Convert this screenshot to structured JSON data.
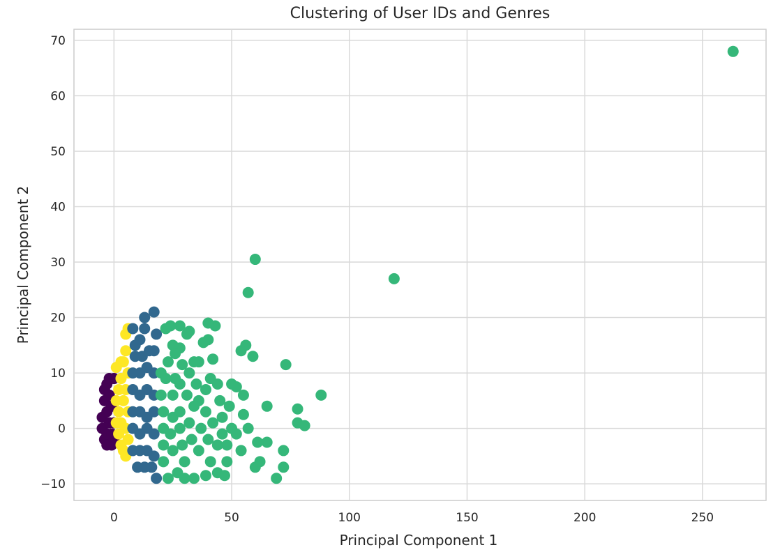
{
  "chart_data": {
    "type": "scatter",
    "title": "Clustering of User IDs and Genres",
    "xlabel": "Principal Component 1",
    "ylabel": "Principal Component 2",
    "xlim": [
      -17,
      277
    ],
    "ylim": [
      -13,
      72
    ],
    "xticks": [
      0,
      50,
      100,
      150,
      200,
      250
    ],
    "yticks": [
      -10,
      0,
      10,
      20,
      30,
      40,
      50,
      60,
      70
    ],
    "grid": true,
    "cluster_colors": [
      "#440154",
      "#31688e",
      "#35b779",
      "#fde725"
    ],
    "points": [
      {
        "x": -3,
        "y": 8,
        "c": 0
      },
      {
        "x": -4,
        "y": 5,
        "c": 0
      },
      {
        "x": -5,
        "y": 2,
        "c": 0
      },
      {
        "x": -5,
        "y": 0,
        "c": 0
      },
      {
        "x": -4,
        "y": -2,
        "c": 0
      },
      {
        "x": -3,
        "y": -3,
        "c": 0
      },
      {
        "x": -1,
        "y": -3,
        "c": 0
      },
      {
        "x": -2,
        "y": 6,
        "c": 0
      },
      {
        "x": -3,
        "y": 3,
        "c": 0
      },
      {
        "x": -2,
        "y": 1,
        "c": 0
      },
      {
        "x": -3,
        "y": -1,
        "c": 0
      },
      {
        "x": 0,
        "y": 9,
        "c": 0
      },
      {
        "x": -1,
        "y": 4,
        "c": 0
      },
      {
        "x": 0,
        "y": 1,
        "c": 0
      },
      {
        "x": -1,
        "y": -1,
        "c": 0
      },
      {
        "x": 0,
        "y": -2,
        "c": 0
      },
      {
        "x": -4,
        "y": 7,
        "c": 0
      },
      {
        "x": -2,
        "y": 9,
        "c": 0
      },
      {
        "x": 1,
        "y": 11,
        "c": 3
      },
      {
        "x": 3,
        "y": 12,
        "c": 3
      },
      {
        "x": 5,
        "y": 14,
        "c": 3
      },
      {
        "x": 5,
        "y": 17,
        "c": 3
      },
      {
        "x": 6,
        "y": 18,
        "c": 3
      },
      {
        "x": 3,
        "y": 9,
        "c": 3
      },
      {
        "x": 2,
        "y": 7,
        "c": 3
      },
      {
        "x": 4,
        "y": 5,
        "c": 3
      },
      {
        "x": 2,
        "y": 3,
        "c": 3
      },
      {
        "x": 3,
        "y": 1,
        "c": 3
      },
      {
        "x": 2,
        "y": -1,
        "c": 3
      },
      {
        "x": 3,
        "y": -3,
        "c": 3
      },
      {
        "x": 4,
        "y": -4,
        "c": 3
      },
      {
        "x": 5,
        "y": -5,
        "c": 3
      },
      {
        "x": 6,
        "y": 10,
        "c": 3
      },
      {
        "x": 5,
        "y": 7,
        "c": 3
      },
      {
        "x": 6,
        "y": 3,
        "c": 3
      },
      {
        "x": 5,
        "y": 0,
        "c": 3
      },
      {
        "x": 6,
        "y": -2,
        "c": 3
      },
      {
        "x": 4,
        "y": 12,
        "c": 3
      },
      {
        "x": 1,
        "y": 5,
        "c": 3
      },
      {
        "x": 1,
        "y": 1,
        "c": 3
      },
      {
        "x": 8,
        "y": 18,
        "c": 1
      },
      {
        "x": 11,
        "y": 16,
        "c": 1
      },
      {
        "x": 13,
        "y": 20,
        "c": 1
      },
      {
        "x": 13,
        "y": 18,
        "c": 1
      },
      {
        "x": 17,
        "y": 21,
        "c": 1
      },
      {
        "x": 18,
        "y": 17,
        "c": 1
      },
      {
        "x": 9,
        "y": 13,
        "c": 1
      },
      {
        "x": 12,
        "y": 13,
        "c": 1
      },
      {
        "x": 15,
        "y": 14,
        "c": 1
      },
      {
        "x": 17,
        "y": 14,
        "c": 1
      },
      {
        "x": 8,
        "y": 10,
        "c": 1
      },
      {
        "x": 11,
        "y": 10,
        "c": 1
      },
      {
        "x": 14,
        "y": 11,
        "c": 1
      },
      {
        "x": 17,
        "y": 10,
        "c": 1
      },
      {
        "x": 8,
        "y": 7,
        "c": 1
      },
      {
        "x": 11,
        "y": 6,
        "c": 1
      },
      {
        "x": 14,
        "y": 7,
        "c": 1
      },
      {
        "x": 17,
        "y": 6,
        "c": 1
      },
      {
        "x": 8,
        "y": 3,
        "c": 1
      },
      {
        "x": 11,
        "y": 3,
        "c": 1
      },
      {
        "x": 14,
        "y": 2,
        "c": 1
      },
      {
        "x": 17,
        "y": 3,
        "c": 1
      },
      {
        "x": 8,
        "y": 0,
        "c": 1
      },
      {
        "x": 11,
        "y": -1,
        "c": 1
      },
      {
        "x": 14,
        "y": 0,
        "c": 1
      },
      {
        "x": 17,
        "y": -1,
        "c": 1
      },
      {
        "x": 8,
        "y": -4,
        "c": 1
      },
      {
        "x": 11,
        "y": -4,
        "c": 1
      },
      {
        "x": 14,
        "y": -4,
        "c": 1
      },
      {
        "x": 17,
        "y": -5,
        "c": 1
      },
      {
        "x": 10,
        "y": -7,
        "c": 1
      },
      {
        "x": 13,
        "y": -7,
        "c": 1
      },
      {
        "x": 16,
        "y": -7,
        "c": 1
      },
      {
        "x": 18,
        "y": -9,
        "c": 1
      },
      {
        "x": 9,
        "y": 15,
        "c": 1
      },
      {
        "x": 263,
        "y": 68,
        "c": 2
      },
      {
        "x": 119,
        "y": 27,
        "c": 2
      },
      {
        "x": 60,
        "y": 30.5,
        "c": 2
      },
      {
        "x": 57,
        "y": 24.5,
        "c": 2
      },
      {
        "x": 88,
        "y": 6,
        "c": 2
      },
      {
        "x": 73,
        "y": 11.5,
        "c": 2
      },
      {
        "x": 78,
        "y": 3.5,
        "c": 2
      },
      {
        "x": 78,
        "y": 1,
        "c": 2
      },
      {
        "x": 81,
        "y": 0.5,
        "c": 2
      },
      {
        "x": 65,
        "y": 4,
        "c": 2
      },
      {
        "x": 72,
        "y": -4,
        "c": 2
      },
      {
        "x": 72,
        "y": -7,
        "c": 2
      },
      {
        "x": 69,
        "y": -9,
        "c": 2
      },
      {
        "x": 65,
        "y": -2.5,
        "c": 2
      },
      {
        "x": 62,
        "y": -6,
        "c": 2
      },
      {
        "x": 60,
        "y": -7,
        "c": 2
      },
      {
        "x": 61,
        "y": -2.5,
        "c": 2
      },
      {
        "x": 59,
        "y": 13,
        "c": 2
      },
      {
        "x": 56,
        "y": 15,
        "c": 2
      },
      {
        "x": 54,
        "y": 14,
        "c": 2
      },
      {
        "x": 55,
        "y": 6,
        "c": 2
      },
      {
        "x": 55,
        "y": 2.5,
        "c": 2
      },
      {
        "x": 57,
        "y": 0,
        "c": 2
      },
      {
        "x": 54,
        "y": -4,
        "c": 2
      },
      {
        "x": 52,
        "y": 7.5,
        "c": 2
      },
      {
        "x": 50,
        "y": 8,
        "c": 2
      },
      {
        "x": 48,
        "y": -6,
        "c": 2
      },
      {
        "x": 47,
        "y": -8.5,
        "c": 2
      },
      {
        "x": 46,
        "y": 2,
        "c": 2
      },
      {
        "x": 45,
        "y": 5,
        "c": 2
      },
      {
        "x": 44,
        "y": 8,
        "c": 2
      },
      {
        "x": 43,
        "y": 18.5,
        "c": 2
      },
      {
        "x": 42,
        "y": 12.5,
        "c": 2
      },
      {
        "x": 40,
        "y": 19,
        "c": 2
      },
      {
        "x": 40,
        "y": 16,
        "c": 2
      },
      {
        "x": 38,
        "y": 15.5,
        "c": 2
      },
      {
        "x": 36,
        "y": 12,
        "c": 2
      },
      {
        "x": 34,
        "y": 12,
        "c": 2
      },
      {
        "x": 32,
        "y": 17.5,
        "c": 2
      },
      {
        "x": 31,
        "y": 17,
        "c": 2
      },
      {
        "x": 28,
        "y": 18.5,
        "c": 2
      },
      {
        "x": 28,
        "y": 14.5,
        "c": 2
      },
      {
        "x": 25,
        "y": 15,
        "c": 2
      },
      {
        "x": 24,
        "y": 18.5,
        "c": 2
      },
      {
        "x": 22,
        "y": 18,
        "c": 2
      },
      {
        "x": 26,
        "y": 13.5,
        "c": 2
      },
      {
        "x": 29,
        "y": 11.5,
        "c": 2
      },
      {
        "x": 32,
        "y": 10,
        "c": 2
      },
      {
        "x": 41,
        "y": 9,
        "c": 2
      },
      {
        "x": 39,
        "y": 7,
        "c": 2
      },
      {
        "x": 36,
        "y": 5,
        "c": 2
      },
      {
        "x": 34,
        "y": 4,
        "c": 2
      },
      {
        "x": 31,
        "y": 6,
        "c": 2
      },
      {
        "x": 28,
        "y": 8,
        "c": 2
      },
      {
        "x": 25,
        "y": 6,
        "c": 2
      },
      {
        "x": 22,
        "y": 9,
        "c": 2
      },
      {
        "x": 20,
        "y": 10,
        "c": 2
      },
      {
        "x": 20,
        "y": 6,
        "c": 2
      },
      {
        "x": 21,
        "y": 3,
        "c": 2
      },
      {
        "x": 21,
        "y": 0,
        "c": 2
      },
      {
        "x": 21,
        "y": -3,
        "c": 2
      },
      {
        "x": 21,
        "y": -6,
        "c": 2
      },
      {
        "x": 23,
        "y": -9,
        "c": 2
      },
      {
        "x": 25,
        "y": 2,
        "c": 2
      },
      {
        "x": 24,
        "y": -1,
        "c": 2
      },
      {
        "x": 25,
        "y": -4,
        "c": 2
      },
      {
        "x": 27,
        "y": -8,
        "c": 2
      },
      {
        "x": 28,
        "y": 3,
        "c": 2
      },
      {
        "x": 28,
        "y": 0,
        "c": 2
      },
      {
        "x": 29,
        "y": -3,
        "c": 2
      },
      {
        "x": 30,
        "y": -6,
        "c": 2
      },
      {
        "x": 32,
        "y": 1,
        "c": 2
      },
      {
        "x": 33,
        "y": -2,
        "c": 2
      },
      {
        "x": 34,
        "y": -9,
        "c": 2
      },
      {
        "x": 36,
        "y": -4,
        "c": 2
      },
      {
        "x": 37,
        "y": 0,
        "c": 2
      },
      {
        "x": 39,
        "y": 3,
        "c": 2
      },
      {
        "x": 40,
        "y": -2,
        "c": 2
      },
      {
        "x": 41,
        "y": -6,
        "c": 2
      },
      {
        "x": 42,
        "y": 1,
        "c": 2
      },
      {
        "x": 44,
        "y": -3,
        "c": 2
      },
      {
        "x": 46,
        "y": -1,
        "c": 2
      },
      {
        "x": 48,
        "y": -3,
        "c": 2
      },
      {
        "x": 49,
        "y": 4,
        "c": 2
      },
      {
        "x": 50,
        "y": 0,
        "c": 2
      },
      {
        "x": 52,
        "y": -1,
        "c": 2
      },
      {
        "x": 44,
        "y": -8,
        "c": 2
      },
      {
        "x": 39,
        "y": -8.5,
        "c": 2
      },
      {
        "x": 30,
        "y": -9,
        "c": 2
      },
      {
        "x": 26,
        "y": 9,
        "c": 2
      },
      {
        "x": 35,
        "y": 8,
        "c": 2
      },
      {
        "x": 23,
        "y": 12,
        "c": 2
      }
    ]
  }
}
